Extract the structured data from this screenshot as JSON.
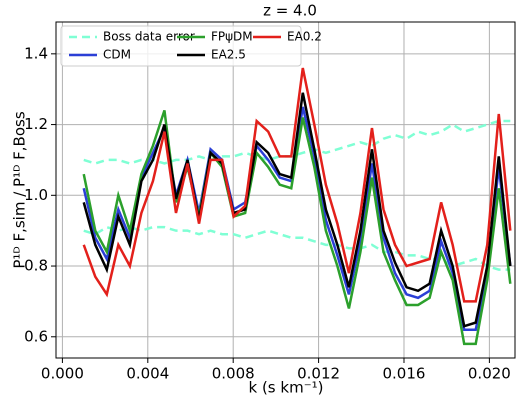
{
  "chart_data": {
    "type": "line",
    "title": "z = 4.0",
    "xlabel": "k (s km⁻¹)",
    "ylabel": "P¹ᴰ F,sim / P¹ᴰ F,Boss",
    "x": [
      0.001,
      0.00154,
      0.00208,
      0.00262,
      0.00316,
      0.0037,
      0.00424,
      0.00478,
      0.00532,
      0.00586,
      0.0064,
      0.00694,
      0.00748,
      0.00802,
      0.00856,
      0.0091,
      0.00964,
      0.01018,
      0.01072,
      0.01126,
      0.0118,
      0.01234,
      0.01288,
      0.01342,
      0.01396,
      0.0145,
      0.01504,
      0.01558,
      0.01612,
      0.01666,
      0.0172,
      0.01774,
      0.01828,
      0.01882,
      0.01936,
      0.0199,
      0.02044,
      0.02098
    ],
    "series": [
      {
        "name": "Boss data error",
        "color": "#7fffd4",
        "dashed": true,
        "upper": [
          1.1,
          1.09,
          1.1,
          1.1,
          1.09,
          1.1,
          1.1,
          1.09,
          1.1,
          1.1,
          1.11,
          1.1,
          1.11,
          1.11,
          1.12,
          1.11,
          1.1,
          1.11,
          1.11,
          1.12,
          1.13,
          1.12,
          1.13,
          1.14,
          1.15,
          1.14,
          1.16,
          1.17,
          1.16,
          1.18,
          1.17,
          1.18,
          1.2,
          1.18,
          1.19,
          1.2,
          1.21,
          1.21
        ],
        "lower": [
          0.9,
          0.89,
          0.91,
          0.9,
          0.91,
          0.9,
          0.91,
          0.91,
          0.9,
          0.9,
          0.89,
          0.9,
          0.89,
          0.89,
          0.88,
          0.89,
          0.9,
          0.89,
          0.88,
          0.88,
          0.87,
          0.86,
          0.86,
          0.85,
          0.85,
          0.86,
          0.84,
          0.84,
          0.83,
          0.83,
          0.82,
          0.82,
          0.8,
          0.81,
          0.82,
          0.8,
          0.79,
          0.79
        ]
      },
      {
        "name": "CDM",
        "color": "#2b3fd6",
        "values": [
          1.02,
          0.88,
          0.82,
          0.96,
          0.88,
          1.05,
          1.12,
          1.19,
          1.0,
          1.1,
          0.95,
          1.13,
          1.1,
          0.96,
          0.98,
          1.14,
          1.1,
          1.05,
          1.04,
          1.25,
          1.11,
          0.93,
          0.83,
          0.72,
          0.87,
          1.09,
          0.88,
          0.78,
          0.72,
          0.71,
          0.73,
          0.87,
          0.78,
          0.62,
          0.62,
          0.78,
          1.08,
          0.8
        ]
      },
      {
        "name": "FPψDM",
        "color": "#2ca02c",
        "values": [
          1.06,
          0.9,
          0.84,
          1.0,
          0.9,
          1.06,
          1.14,
          1.24,
          0.98,
          1.08,
          0.94,
          1.12,
          1.08,
          0.94,
          0.95,
          1.12,
          1.08,
          1.03,
          1.02,
          1.22,
          1.08,
          0.9,
          0.8,
          0.68,
          0.84,
          1.05,
          0.84,
          0.76,
          0.69,
          0.69,
          0.71,
          0.84,
          0.76,
          0.58,
          0.58,
          0.76,
          1.02,
          0.75
        ]
      },
      {
        "name": "EA2.5",
        "color": "#000000",
        "values": [
          0.98,
          0.86,
          0.79,
          0.94,
          0.86,
          1.04,
          1.1,
          1.2,
          0.99,
          1.1,
          0.93,
          1.12,
          1.09,
          0.95,
          0.96,
          1.15,
          1.12,
          1.06,
          1.05,
          1.29,
          1.13,
          0.96,
          0.86,
          0.74,
          0.9,
          1.13,
          0.9,
          0.81,
          0.74,
          0.73,
          0.75,
          0.9,
          0.8,
          0.63,
          0.64,
          0.8,
          1.11,
          0.8
        ]
      },
      {
        "name": "EA0.2",
        "color": "#e3201b",
        "values": [
          0.86,
          0.77,
          0.72,
          0.86,
          0.8,
          0.95,
          1.04,
          1.18,
          0.95,
          1.09,
          0.92,
          1.1,
          1.1,
          0.94,
          0.97,
          1.21,
          1.18,
          1.11,
          1.11,
          1.36,
          1.2,
          1.03,
          0.92,
          0.78,
          0.95,
          1.19,
          0.96,
          0.86,
          0.8,
          0.81,
          0.82,
          0.98,
          0.86,
          0.7,
          0.7,
          0.86,
          1.23,
          0.9
        ]
      }
    ],
    "xlim": [
      -0.0003,
      0.0212
    ],
    "xticks": [
      {
        "value": 0,
        "label": "0.000"
      },
      {
        "value": 0.004,
        "label": "0.004"
      },
      {
        "value": 0.008,
        "label": "0.008"
      },
      {
        "value": 0.012,
        "label": "0.012"
      },
      {
        "value": 0.016,
        "label": "0.016"
      },
      {
        "value": 0.02,
        "label": "0.020"
      }
    ],
    "ylim": [
      0.54,
      1.49
    ],
    "yticks": [
      0.6,
      0.8,
      {
        "value": 1,
        "label": "1.0"
      },
      1.2,
      1.4
    ],
    "grid": true,
    "legend": "upper-left"
  }
}
